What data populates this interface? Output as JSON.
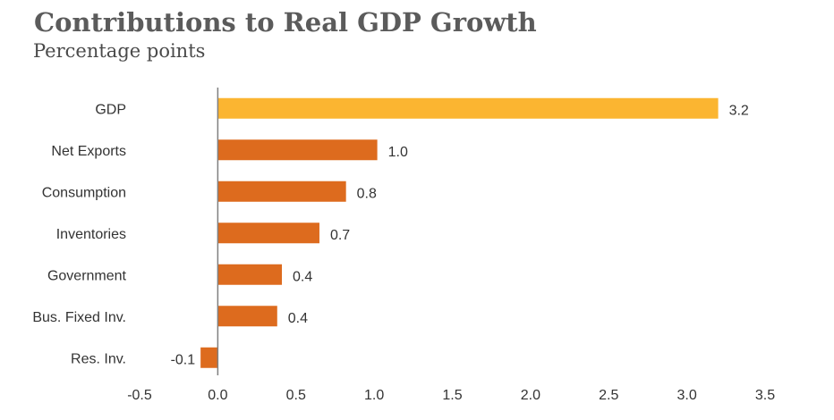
{
  "title": "Contributions to Real GDP Growth",
  "subtitle": "Percentage points",
  "colors": {
    "highlight": "#FBB531",
    "bar": "#DD6B1E",
    "axis": "#7f7f7f",
    "title": "#5b5b5b"
  },
  "chart_data": {
    "type": "bar",
    "orientation": "horizontal",
    "categories": [
      "GDP",
      "Net Exports",
      "Consumption",
      "Inventories",
      "Government",
      "Bus. Fixed Inv.",
      "Res. Inv."
    ],
    "values": [
      3.2,
      1.02,
      0.82,
      0.65,
      0.41,
      0.38,
      -0.11
    ],
    "data_labels": [
      "3.2",
      "1.0",
      "0.8",
      "0.7",
      "0.4",
      "0.4",
      "-0.1"
    ],
    "highlight_index": 0,
    "xlim": [
      -0.5,
      3.5
    ],
    "xticks": [
      -0.5,
      0.0,
      0.5,
      1.0,
      1.5,
      2.0,
      2.5,
      3.0,
      3.5
    ],
    "xtick_labels": [
      "-0.5",
      "0.0",
      "0.5",
      "1.0",
      "1.5",
      "2.0",
      "2.5",
      "3.0",
      "3.5"
    ],
    "grid": false,
    "legend": "none"
  }
}
